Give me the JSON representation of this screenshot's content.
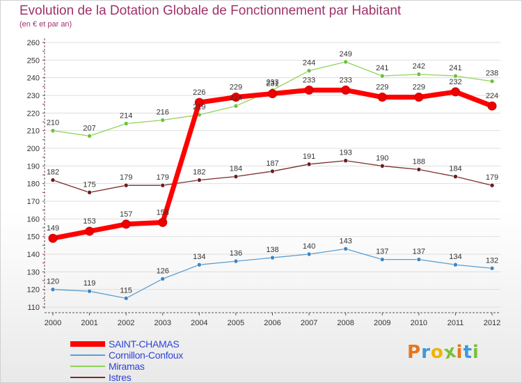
{
  "header": {
    "title": "Evolution de la Dotation Globale de Fonctionnement par Habitant",
    "subtitle": "(en € et par an)"
  },
  "brand": {
    "letters": [
      "P",
      "r",
      "o",
      "x",
      "i",
      "t",
      "i"
    ],
    "colors": [
      "#e8751a",
      "#3a9ad9",
      "#f0b400",
      "#7cbf3a",
      "#e8751a",
      "#3a9ad9",
      "#7cbf3a"
    ]
  },
  "chart_data": {
    "type": "line",
    "title": "Evolution de la Dotation Globale de Fonctionnement par Habitant",
    "subtitle": "(en € et par an)",
    "x": [
      "2000",
      "2001",
      "2002",
      "2003",
      "2004",
      "2005",
      "2006",
      "2007",
      "2008",
      "2009",
      "2010",
      "2011",
      "2012"
    ],
    "ylim": [
      110,
      260
    ],
    "yticks": [
      110,
      120,
      130,
      140,
      150,
      160,
      170,
      180,
      190,
      200,
      210,
      220,
      230,
      240,
      250,
      260
    ],
    "grid": true,
    "legend_position": "bottom-left",
    "series": [
      {
        "name": "Miramas",
        "color": "#8fd35a",
        "marker": "#6cc23a",
        "width": 1.3,
        "radius": 3,
        "values": [
          210,
          207,
          214,
          216,
          219,
          224,
          233,
          244,
          249,
          241,
          242,
          241,
          238
        ]
      },
      {
        "name": "Istres",
        "color": "#7a2a2a",
        "marker": "#6b1e1e",
        "width": 1.3,
        "radius": 3,
        "values": [
          182,
          175,
          179,
          179,
          182,
          184,
          187,
          191,
          193,
          190,
          188,
          184,
          179
        ]
      },
      {
        "name": "Cornillon-Confoux",
        "color": "#5b9fd0",
        "marker": "#3f86c2",
        "width": 1.3,
        "radius": 3,
        "values": [
          120,
          119,
          115,
          126,
          134,
          136,
          138,
          140,
          143,
          137,
          137,
          134,
          132
        ]
      },
      {
        "name": "SAINT-CHAMAS",
        "color": "#ff0000",
        "marker": "#ee0000",
        "width": 7,
        "radius": 6,
        "values": [
          149,
          153,
          157,
          158,
          226,
          229,
          231,
          233,
          233,
          229,
          229,
          232,
          224
        ]
      }
    ],
    "legend": [
      "SAINT-CHAMAS",
      "Cornillon-Confoux",
      "Miramas",
      "Istres"
    ]
  }
}
